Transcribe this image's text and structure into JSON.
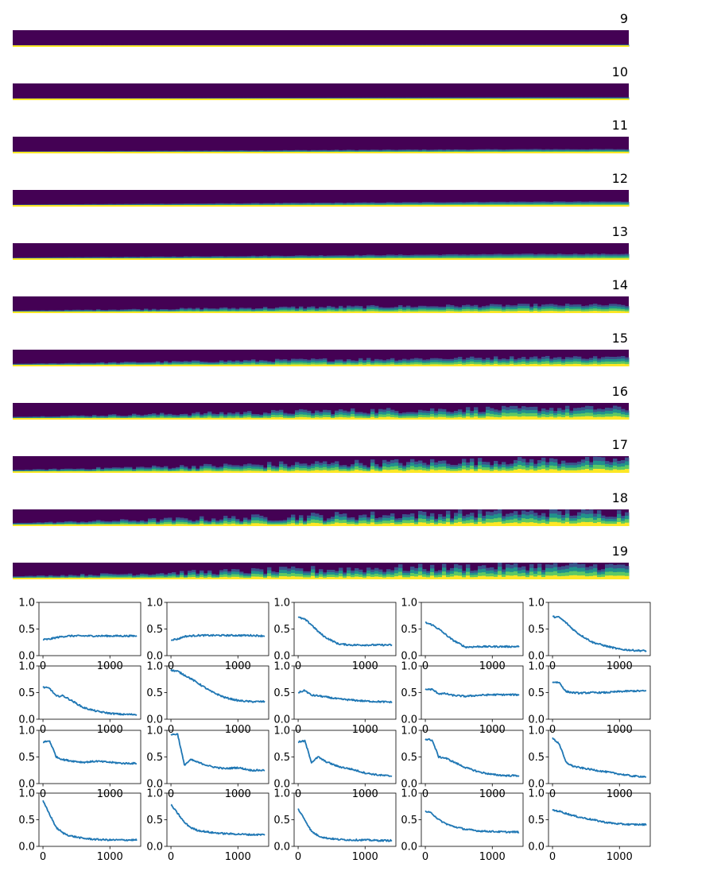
{
  "colors": {
    "viridis_dark": "#440154",
    "viridis_mid1": "#3b528b",
    "viridis_mid2": "#21918c",
    "viridis_mid3": "#5ec962",
    "viridis_bright": "#fde725",
    "line": "#1f77b4",
    "axis": "#000000"
  },
  "strips": [
    {
      "label": "9"
    },
    {
      "label": "10"
    },
    {
      "label": "11"
    },
    {
      "label": "12"
    },
    {
      "label": "13"
    },
    {
      "label": "14"
    },
    {
      "label": "15"
    },
    {
      "label": "16"
    },
    {
      "label": "17"
    },
    {
      "label": "18"
    },
    {
      "label": "19"
    }
  ],
  "chart_data": [
    {
      "type": "heatmap",
      "rows": [
        "9",
        "10",
        "11",
        "12",
        "13",
        "14",
        "15",
        "16",
        "17",
        "18",
        "19"
      ],
      "x_extent": [
        0,
        1400
      ],
      "colormap": "viridis",
      "band_fraction": [
        0.05,
        0.08,
        0.15,
        0.2,
        0.25,
        0.35,
        0.4,
        0.5,
        0.55,
        0.6,
        0.6
      ],
      "noise_level": [
        0.0,
        0.0,
        0.05,
        0.05,
        0.08,
        0.3,
        0.35,
        0.6,
        0.8,
        0.9,
        0.85
      ]
    },
    {
      "type": "line",
      "grid_rows": 4,
      "grid_cols": 5,
      "ylim": [
        0,
        1.0
      ],
      "yticks": [
        "0.0",
        "0.5",
        "1.0"
      ],
      "xlim": [
        -60,
        1460
      ],
      "xticks": [
        "0",
        "1000"
      ],
      "series": [
        {
          "x": [
            0,
            100,
            200,
            300,
            400,
            600,
            800,
            1000,
            1200,
            1400
          ],
          "y": [
            0.3,
            0.31,
            0.34,
            0.36,
            0.37,
            0.37,
            0.37,
            0.37,
            0.37,
            0.37
          ]
        },
        {
          "x": [
            0,
            100,
            200,
            300,
            400,
            600,
            800,
            1000,
            1200,
            1400
          ],
          "y": [
            0.3,
            0.31,
            0.36,
            0.37,
            0.38,
            0.38,
            0.38,
            0.38,
            0.38,
            0.37
          ]
        },
        {
          "x": [
            0,
            100,
            200,
            300,
            400,
            600,
            800,
            1000,
            1200,
            1400
          ],
          "y": [
            0.72,
            0.68,
            0.58,
            0.45,
            0.35,
            0.22,
            0.2,
            0.2,
            0.2,
            0.2
          ]
        },
        {
          "x": [
            0,
            100,
            200,
            300,
            400,
            600,
            800,
            1000,
            1200,
            1400
          ],
          "y": [
            0.62,
            0.58,
            0.5,
            0.4,
            0.3,
            0.16,
            0.17,
            0.17,
            0.17,
            0.17
          ]
        },
        {
          "x": [
            0,
            100,
            200,
            300,
            400,
            600,
            800,
            1000,
            1200,
            1400
          ],
          "y": [
            0.73,
            0.72,
            0.62,
            0.5,
            0.4,
            0.25,
            0.18,
            0.12,
            0.1,
            0.09
          ]
        },
        {
          "x": [
            0,
            100,
            200,
            300,
            400,
            600,
            800,
            1000,
            1200,
            1400
          ],
          "y": [
            0.6,
            0.58,
            0.43,
            0.44,
            0.37,
            0.22,
            0.15,
            0.11,
            0.09,
            0.09
          ]
        },
        {
          "x": [
            0,
            100,
            200,
            300,
            400,
            600,
            800,
            1000,
            1200,
            1400
          ],
          "y": [
            0.92,
            0.9,
            0.83,
            0.76,
            0.68,
            0.52,
            0.41,
            0.35,
            0.33,
            0.33
          ]
        },
        {
          "x": [
            0,
            100,
            200,
            300,
            400,
            600,
            800,
            1000,
            1200,
            1400
          ],
          "y": [
            0.5,
            0.54,
            0.45,
            0.44,
            0.42,
            0.38,
            0.36,
            0.34,
            0.33,
            0.32
          ]
        },
        {
          "x": [
            0,
            100,
            200,
            300,
            400,
            600,
            800,
            1000,
            1200,
            1400
          ],
          "y": [
            0.56,
            0.56,
            0.48,
            0.48,
            0.45,
            0.43,
            0.45,
            0.46,
            0.46,
            0.46
          ]
        },
        {
          "x": [
            0,
            100,
            200,
            300,
            400,
            600,
            800,
            1000,
            1200,
            1400
          ],
          "y": [
            0.7,
            0.69,
            0.52,
            0.5,
            0.49,
            0.5,
            0.5,
            0.52,
            0.53,
            0.53
          ]
        },
        {
          "x": [
            0,
            100,
            200,
            300,
            400,
            600,
            800,
            1000,
            1200,
            1400
          ],
          "y": [
            0.78,
            0.8,
            0.5,
            0.45,
            0.43,
            0.4,
            0.42,
            0.4,
            0.38,
            0.38
          ]
        },
        {
          "x": [
            0,
            100,
            200,
            300,
            400,
            600,
            800,
            1000,
            1200,
            1400
          ],
          "y": [
            0.92,
            0.93,
            0.35,
            0.45,
            0.4,
            0.32,
            0.28,
            0.3,
            0.25,
            0.25
          ]
        },
        {
          "x": [
            0,
            100,
            200,
            300,
            400,
            600,
            800,
            1000,
            1200,
            1400
          ],
          "y": [
            0.78,
            0.8,
            0.4,
            0.5,
            0.42,
            0.32,
            0.27,
            0.2,
            0.16,
            0.14
          ]
        },
        {
          "x": [
            0,
            100,
            200,
            300,
            400,
            600,
            800,
            1000,
            1200,
            1400
          ],
          "y": [
            0.83,
            0.82,
            0.5,
            0.48,
            0.42,
            0.3,
            0.22,
            0.17,
            0.15,
            0.15
          ]
        },
        {
          "x": [
            0,
            100,
            200,
            300,
            400,
            600,
            800,
            1000,
            1200,
            1400
          ],
          "y": [
            0.85,
            0.75,
            0.4,
            0.33,
            0.3,
            0.26,
            0.22,
            0.18,
            0.14,
            0.13
          ]
        },
        {
          "x": [
            0,
            100,
            200,
            300,
            400,
            600,
            800,
            1000,
            1200,
            1400
          ],
          "y": [
            0.85,
            0.6,
            0.35,
            0.25,
            0.2,
            0.15,
            0.13,
            0.12,
            0.12,
            0.12
          ]
        },
        {
          "x": [
            0,
            100,
            200,
            300,
            400,
            600,
            800,
            1000,
            1200,
            1400
          ],
          "y": [
            0.78,
            0.62,
            0.45,
            0.35,
            0.3,
            0.26,
            0.24,
            0.23,
            0.22,
            0.22
          ]
        },
        {
          "x": [
            0,
            100,
            200,
            300,
            400,
            600,
            800,
            1000,
            1200,
            1400
          ],
          "y": [
            0.7,
            0.5,
            0.28,
            0.2,
            0.16,
            0.13,
            0.12,
            0.12,
            0.11,
            0.11
          ]
        },
        {
          "x": [
            0,
            100,
            200,
            300,
            400,
            600,
            800,
            1000,
            1200,
            1400
          ],
          "y": [
            0.66,
            0.62,
            0.5,
            0.43,
            0.38,
            0.32,
            0.29,
            0.28,
            0.27,
            0.27
          ]
        },
        {
          "x": [
            0,
            100,
            200,
            300,
            400,
            600,
            800,
            1000,
            1200,
            1400
          ],
          "y": [
            0.68,
            0.66,
            0.62,
            0.58,
            0.55,
            0.5,
            0.45,
            0.42,
            0.41,
            0.41
          ]
        }
      ]
    }
  ]
}
